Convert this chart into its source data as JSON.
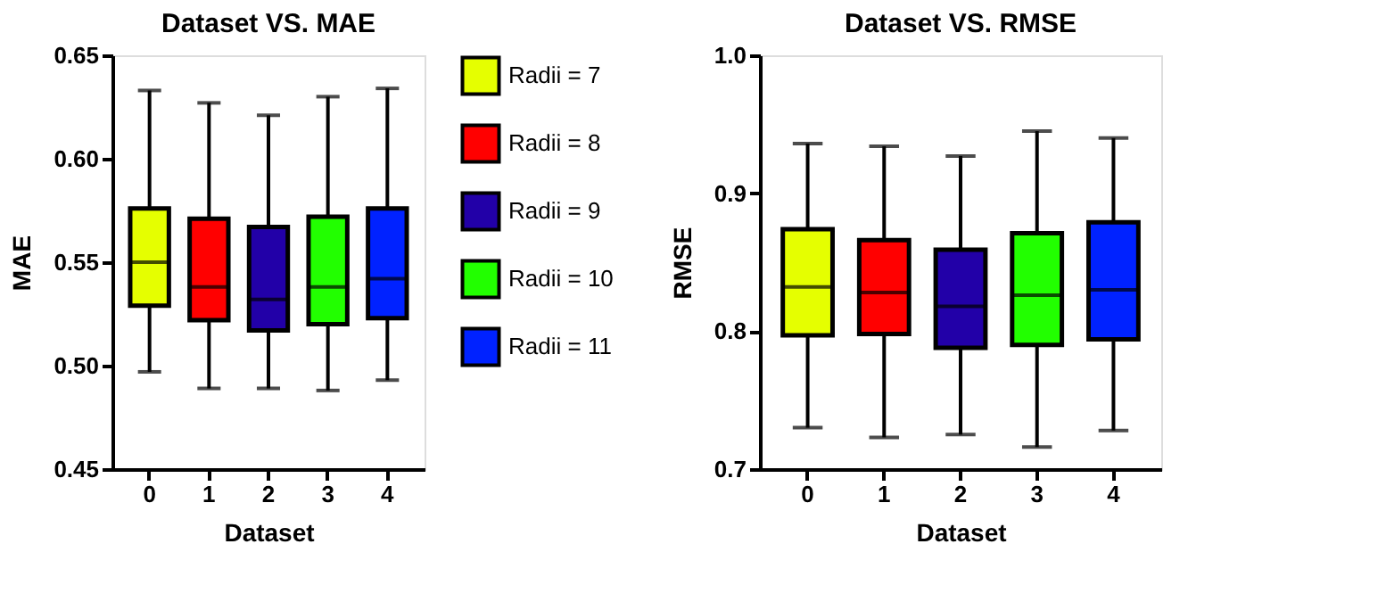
{
  "chart_data": [
    {
      "type": "box",
      "title": "Dataset VS. MAE",
      "xlabel": "Dataset",
      "ylabel": "MAE",
      "categories": [
        "0",
        "1",
        "2",
        "3",
        "4"
      ],
      "ylim": [
        0.45,
        0.65
      ],
      "yticks": [
        {
          "value": 0.45,
          "label": "0.45"
        },
        {
          "value": 0.5,
          "label": "0.50"
        },
        {
          "value": 0.55,
          "label": "0.55"
        },
        {
          "value": 0.6,
          "label": "0.60"
        },
        {
          "value": 0.65,
          "label": "0.65"
        }
      ],
      "grid": false,
      "legend": "right",
      "series": [
        {
          "name": "Radii = 7",
          "color": "#e5ff00",
          "x": [
            "0"
          ],
          "boxes": [
            {
              "low": 0.497,
              "q1": 0.529,
              "median": 0.55,
              "q3": 0.576,
              "high": 0.633
            }
          ]
        },
        {
          "name": "Radii = 8",
          "color": "#ff0000",
          "x": [
            "1"
          ],
          "boxes": [
            {
              "low": 0.489,
              "q1": 0.522,
              "median": 0.538,
              "q3": 0.571,
              "high": 0.627
            }
          ]
        },
        {
          "name": "Radii = 9",
          "color": "#2200a8",
          "x": [
            "2"
          ],
          "boxes": [
            {
              "low": 0.489,
              "q1": 0.517,
              "median": 0.532,
              "q3": 0.567,
              "high": 0.621
            }
          ]
        },
        {
          "name": "Radii = 10",
          "color": "#22ff00",
          "x": [
            "3"
          ],
          "boxes": [
            {
              "low": 0.488,
              "q1": 0.52,
              "median": 0.538,
              "q3": 0.572,
              "high": 0.63
            }
          ]
        },
        {
          "name": "Radii = 11",
          "color": "#0022ff",
          "x": [
            "4"
          ],
          "boxes": [
            {
              "low": 0.493,
              "q1": 0.523,
              "median": 0.542,
              "q3": 0.576,
              "high": 0.634
            }
          ]
        }
      ]
    },
    {
      "type": "box",
      "title": "Dataset VS. RMSE",
      "xlabel": "Dataset",
      "ylabel": "RMSE",
      "categories": [
        "0",
        "1",
        "2",
        "3",
        "4"
      ],
      "ylim": [
        0.7,
        1.0
      ],
      "yticks": [
        0.7,
        0.8,
        0.9,
        {
          "value": 1.0,
          "label": "1.0"
        }
      ],
      "grid": false,
      "legend": false,
      "series": [
        {
          "color": "#e5ff00",
          "x": [
            "0"
          ],
          "boxes": [
            {
              "low": 0.73,
              "q1": 0.797,
              "median": 0.832,
              "q3": 0.874,
              "high": 0.936
            }
          ]
        },
        {
          "color": "#ff0000",
          "x": [
            "1"
          ],
          "boxes": [
            {
              "low": 0.723,
              "q1": 0.798,
              "median": 0.828,
              "q3": 0.866,
              "high": 0.934
            }
          ]
        },
        {
          "color": "#2200a8",
          "x": [
            "2"
          ],
          "boxes": [
            {
              "low": 0.725,
              "q1": 0.788,
              "median": 0.818,
              "q3": 0.859,
              "high": 0.927
            }
          ]
        },
        {
          "color": "#22ff00",
          "x": [
            "3"
          ],
          "boxes": [
            {
              "low": 0.716,
              "q1": 0.79,
              "median": 0.826,
              "q3": 0.871,
              "high": 0.945
            }
          ]
        },
        {
          "color": "#0022ff",
          "x": [
            "4"
          ],
          "boxes": [
            {
              "low": 0.728,
              "q1": 0.794,
              "median": 0.83,
              "q3": 0.879,
              "high": 0.94
            }
          ]
        }
      ]
    }
  ]
}
